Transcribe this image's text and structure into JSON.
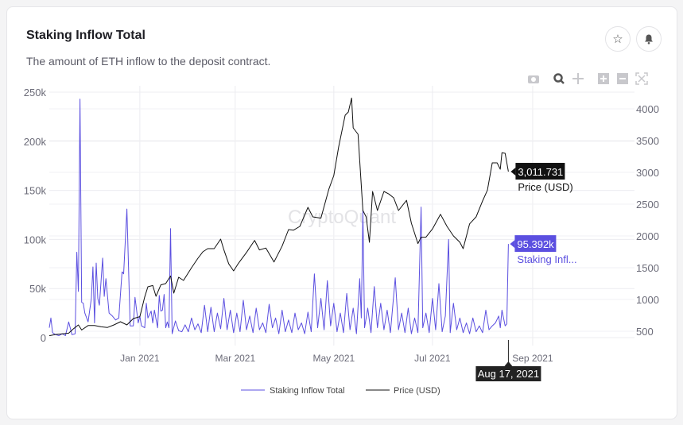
{
  "card": {
    "title": "Staking Inflow Total",
    "subtitle": "The amount of ETH inflow to the deposit contract.",
    "favorite_icon": "star-icon",
    "alert_icon": "bell-icon"
  },
  "toolbar": [
    "camera-icon",
    "zoom-icon",
    "pan-icon",
    "zoom-in-icon",
    "zoom-out-icon",
    "autoscale-icon"
  ],
  "watermark": "CryptoQuant",
  "colors": {
    "staking": "#5b4fe0",
    "price": "#111111",
    "grid": "#ececf0",
    "axis_text": "#6b6b78"
  },
  "hover": {
    "date": "Aug 17, 2021",
    "price_value": "3,011.731",
    "price_name": "Price (USD)",
    "staking_value": "95.392k",
    "staking_name": "Staking Infl..."
  },
  "chart_data": {
    "type": "line",
    "x_ticks": [
      "Jan 2021",
      "Mar 2021",
      "May 2021",
      "Jul 2021",
      "Sep 2021"
    ],
    "x_tick_dates": [
      "2021-01-01",
      "2021-03-01",
      "2021-05-01",
      "2021-07-01",
      "2021-09-01"
    ],
    "xlim": [
      "2020-11-06",
      "2021-11-03"
    ],
    "y_left": {
      "ticks": [
        "0",
        "50k",
        "100k",
        "150k",
        "200k",
        "250k"
      ],
      "tick_values": [
        0,
        50000,
        100000,
        150000,
        200000,
        250000
      ],
      "range": [
        0,
        250000
      ]
    },
    "y_right": {
      "ticks": [
        "500",
        "1000",
        "1500",
        "2000",
        "2500",
        "3000",
        "3500",
        "4000"
      ],
      "tick_values": [
        500,
        1000,
        1500,
        2000,
        2500,
        3000,
        3500,
        4000
      ],
      "range": [
        400,
        4262
      ]
    },
    "grid": true,
    "legend_position": "bottom",
    "series": [
      {
        "name": "Staking Inflow Total",
        "axis": "left",
        "color": "#5b4fe0",
        "points": [
          [
            "2020-11-06",
            10000
          ],
          [
            "2020-11-07",
            20000
          ],
          [
            "2020-11-08",
            5000
          ],
          [
            "2020-11-10",
            3000
          ],
          [
            "2020-11-12",
            2000
          ],
          [
            "2020-11-14",
            4000
          ],
          [
            "2020-11-16",
            2000
          ],
          [
            "2020-11-18",
            16000
          ],
          [
            "2020-11-20",
            3000
          ],
          [
            "2020-11-22",
            4000
          ],
          [
            "2020-11-23",
            87000
          ],
          [
            "2020-11-24",
            47000
          ],
          [
            "2020-11-25",
            243000
          ],
          [
            "2020-11-26",
            36000
          ],
          [
            "2020-11-27",
            35000
          ],
          [
            "2020-11-28",
            25000
          ],
          [
            "2020-11-30",
            16000
          ],
          [
            "2020-12-02",
            40000
          ],
          [
            "2020-12-03",
            72000
          ],
          [
            "2020-12-04",
            15000
          ],
          [
            "2020-12-05",
            76000
          ],
          [
            "2020-12-06",
            40000
          ],
          [
            "2020-12-07",
            33000
          ],
          [
            "2020-12-09",
            81000
          ],
          [
            "2020-12-10",
            42000
          ],
          [
            "2020-12-11",
            60000
          ],
          [
            "2020-12-13",
            25000
          ],
          [
            "2020-12-15",
            22000
          ],
          [
            "2020-12-17",
            18000
          ],
          [
            "2020-12-19",
            20000
          ],
          [
            "2020-12-21",
            67000
          ],
          [
            "2020-12-22",
            65000
          ],
          [
            "2020-12-24",
            131000
          ],
          [
            "2020-12-26",
            12000
          ],
          [
            "2020-12-28",
            12000
          ],
          [
            "2020-12-29",
            41000
          ],
          [
            "2020-12-31",
            15000
          ],
          [
            "2021-01-01",
            22000
          ],
          [
            "2021-01-02",
            12000
          ],
          [
            "2021-01-04",
            10000
          ],
          [
            "2021-01-05",
            35000
          ],
          [
            "2021-01-06",
            20000
          ],
          [
            "2021-01-08",
            27000
          ],
          [
            "2021-01-09",
            15000
          ],
          [
            "2021-01-10",
            28000
          ],
          [
            "2021-01-12",
            10000
          ],
          [
            "2021-01-13",
            43000
          ],
          [
            "2021-01-14",
            27000
          ],
          [
            "2021-01-15",
            28000
          ],
          [
            "2021-01-16",
            44000
          ],
          [
            "2021-01-17",
            10000
          ],
          [
            "2021-01-18",
            16000
          ],
          [
            "2021-01-19",
            10000
          ],
          [
            "2021-01-20",
            111000
          ],
          [
            "2021-01-21",
            4000
          ],
          [
            "2021-01-23",
            17000
          ],
          [
            "2021-01-25",
            7000
          ],
          [
            "2021-01-27",
            6000
          ],
          [
            "2021-01-29",
            13000
          ],
          [
            "2021-01-31",
            6000
          ],
          [
            "2021-02-02",
            20000
          ],
          [
            "2021-02-04",
            8000
          ],
          [
            "2021-02-06",
            14000
          ],
          [
            "2021-02-08",
            5000
          ],
          [
            "2021-02-10",
            33000
          ],
          [
            "2021-02-12",
            6000
          ],
          [
            "2021-02-14",
            31000
          ],
          [
            "2021-02-16",
            6000
          ],
          [
            "2021-02-18",
            25000
          ],
          [
            "2021-02-20",
            9000
          ],
          [
            "2021-02-22",
            40000
          ],
          [
            "2021-02-24",
            8000
          ],
          [
            "2021-02-26",
            28000
          ],
          [
            "2021-02-28",
            5000
          ],
          [
            "2021-03-02",
            25000
          ],
          [
            "2021-03-04",
            6000
          ],
          [
            "2021-03-06",
            38000
          ],
          [
            "2021-03-08",
            8000
          ],
          [
            "2021-03-10",
            22000
          ],
          [
            "2021-03-12",
            5000
          ],
          [
            "2021-03-14",
            30000
          ],
          [
            "2021-03-16",
            8000
          ],
          [
            "2021-03-18",
            15000
          ],
          [
            "2021-03-20",
            5000
          ],
          [
            "2021-03-22",
            34000
          ],
          [
            "2021-03-24",
            10000
          ],
          [
            "2021-03-26",
            20000
          ],
          [
            "2021-03-28",
            4000
          ],
          [
            "2021-03-30",
            28000
          ],
          [
            "2021-04-01",
            6000
          ],
          [
            "2021-04-03",
            18000
          ],
          [
            "2021-04-05",
            5000
          ],
          [
            "2021-04-07",
            25000
          ],
          [
            "2021-04-09",
            8000
          ],
          [
            "2021-04-11",
            15000
          ],
          [
            "2021-04-13",
            4000
          ],
          [
            "2021-04-15",
            26000
          ],
          [
            "2021-04-17",
            6000
          ],
          [
            "2021-04-19",
            65000
          ],
          [
            "2021-04-21",
            10000
          ],
          [
            "2021-04-23",
            40000
          ],
          [
            "2021-04-25",
            8000
          ],
          [
            "2021-04-27",
            58000
          ],
          [
            "2021-04-29",
            12000
          ],
          [
            "2021-05-01",
            35000
          ],
          [
            "2021-05-03",
            6000
          ],
          [
            "2021-05-05",
            25000
          ],
          [
            "2021-05-07",
            5000
          ],
          [
            "2021-05-09",
            45000
          ],
          [
            "2021-05-11",
            8000
          ],
          [
            "2021-05-13",
            30000
          ],
          [
            "2021-05-15",
            4000
          ],
          [
            "2021-05-17",
            60000
          ],
          [
            "2021-05-18",
            20000
          ],
          [
            "2021-05-19",
            130000
          ],
          [
            "2021-05-20",
            10000
          ],
          [
            "2021-05-22",
            30000
          ],
          [
            "2021-05-24",
            5000
          ],
          [
            "2021-05-26",
            52000
          ],
          [
            "2021-05-28",
            10000
          ],
          [
            "2021-05-30",
            35000
          ],
          [
            "2021-06-01",
            8000
          ],
          [
            "2021-06-03",
            28000
          ],
          [
            "2021-06-05",
            5000
          ],
          [
            "2021-06-08",
            61000
          ],
          [
            "2021-06-10",
            8000
          ],
          [
            "2021-06-12",
            25000
          ],
          [
            "2021-06-14",
            5000
          ],
          [
            "2021-06-16",
            30000
          ],
          [
            "2021-06-18",
            4000
          ],
          [
            "2021-06-20",
            20000
          ],
          [
            "2021-06-22",
            5000
          ],
          [
            "2021-06-24",
            133000
          ],
          [
            "2021-06-25",
            10000
          ],
          [
            "2021-06-27",
            25000
          ],
          [
            "2021-06-29",
            5000
          ],
          [
            "2021-07-01",
            40000
          ],
          [
            "2021-07-03",
            8000
          ],
          [
            "2021-07-05",
            55000
          ],
          [
            "2021-07-07",
            6000
          ],
          [
            "2021-07-09",
            22000
          ],
          [
            "2021-07-11",
            100000
          ],
          [
            "2021-07-12",
            5000
          ],
          [
            "2021-07-14",
            35000
          ],
          [
            "2021-07-16",
            8000
          ],
          [
            "2021-07-18",
            20000
          ],
          [
            "2021-07-20",
            5000
          ],
          [
            "2021-07-22",
            15000
          ],
          [
            "2021-07-24",
            4000
          ],
          [
            "2021-07-26",
            20000
          ],
          [
            "2021-07-28",
            6000
          ],
          [
            "2021-07-30",
            12000
          ],
          [
            "2021-08-01",
            5000
          ],
          [
            "2021-08-03",
            28000
          ],
          [
            "2021-08-05",
            8000
          ],
          [
            "2021-08-07",
            12000
          ],
          [
            "2021-08-09",
            15000
          ],
          [
            "2021-08-11",
            22000
          ],
          [
            "2021-08-12",
            10000
          ],
          [
            "2021-08-13",
            28000
          ],
          [
            "2021-08-15",
            12000
          ],
          [
            "2021-08-16",
            14000
          ],
          [
            "2021-08-17",
            95392
          ]
        ]
      },
      {
        "name": "Price (USD)",
        "axis": "right",
        "color": "#111111",
        "points": [
          [
            "2020-11-06",
            430
          ],
          [
            "2020-11-10",
            450
          ],
          [
            "2020-11-14",
            460
          ],
          [
            "2020-11-18",
            470
          ],
          [
            "2020-11-21",
            540
          ],
          [
            "2020-11-24",
            600
          ],
          [
            "2020-11-26",
            520
          ],
          [
            "2020-11-30",
            590
          ],
          [
            "2020-12-04",
            590
          ],
          [
            "2020-12-08",
            570
          ],
          [
            "2020-12-12",
            560
          ],
          [
            "2020-12-16",
            600
          ],
          [
            "2020-12-20",
            650
          ],
          [
            "2020-12-24",
            600
          ],
          [
            "2020-12-28",
            700
          ],
          [
            "2021-01-01",
            730
          ],
          [
            "2021-01-04",
            1040
          ],
          [
            "2021-01-06",
            1200
          ],
          [
            "2021-01-09",
            1220
          ],
          [
            "2021-01-11",
            1050
          ],
          [
            "2021-01-14",
            1230
          ],
          [
            "2021-01-17",
            1250
          ],
          [
            "2021-01-20",
            1370
          ],
          [
            "2021-01-22",
            1100
          ],
          [
            "2021-01-25",
            1350
          ],
          [
            "2021-01-28",
            1300
          ],
          [
            "2021-02-02",
            1500
          ],
          [
            "2021-02-06",
            1650
          ],
          [
            "2021-02-09",
            1750
          ],
          [
            "2021-02-12",
            1800
          ],
          [
            "2021-02-16",
            1800
          ],
          [
            "2021-02-20",
            1950
          ],
          [
            "2021-02-22",
            1780
          ],
          [
            "2021-02-25",
            1560
          ],
          [
            "2021-02-28",
            1450
          ],
          [
            "2021-03-03",
            1570
          ],
          [
            "2021-03-08",
            1740
          ],
          [
            "2021-03-13",
            1930
          ],
          [
            "2021-03-16",
            1780
          ],
          [
            "2021-03-20",
            1810
          ],
          [
            "2021-03-25",
            1590
          ],
          [
            "2021-03-30",
            1840
          ],
          [
            "2021-04-03",
            2100
          ],
          [
            "2021-04-06",
            2090
          ],
          [
            "2021-04-10",
            2150
          ],
          [
            "2021-04-15",
            2450
          ],
          [
            "2021-04-18",
            2300
          ],
          [
            "2021-04-23",
            2280
          ],
          [
            "2021-04-28",
            2740
          ],
          [
            "2021-05-01",
            2950
          ],
          [
            "2021-05-04",
            3400
          ],
          [
            "2021-05-08",
            3900
          ],
          [
            "2021-05-10",
            3950
          ],
          [
            "2021-05-12",
            4170
          ],
          [
            "2021-05-13",
            3700
          ],
          [
            "2021-05-16",
            3600
          ],
          [
            "2021-05-19",
            2400
          ],
          [
            "2021-05-21",
            2300
          ],
          [
            "2021-05-23",
            1900
          ],
          [
            "2021-05-25",
            2700
          ],
          [
            "2021-05-28",
            2400
          ],
          [
            "2021-06-01",
            2700
          ],
          [
            "2021-06-04",
            2660
          ],
          [
            "2021-06-07",
            2600
          ],
          [
            "2021-06-10",
            2400
          ],
          [
            "2021-06-15",
            2560
          ],
          [
            "2021-06-18",
            2200
          ],
          [
            "2021-06-22",
            1880
          ],
          [
            "2021-06-24",
            1980
          ],
          [
            "2021-06-27",
            1980
          ],
          [
            "2021-07-01",
            2110
          ],
          [
            "2021-07-06",
            2340
          ],
          [
            "2021-07-10",
            2150
          ],
          [
            "2021-07-14",
            2000
          ],
          [
            "2021-07-18",
            1900
          ],
          [
            "2021-07-20",
            1800
          ],
          [
            "2021-07-24",
            2190
          ],
          [
            "2021-07-28",
            2300
          ],
          [
            "2021-08-01",
            2550
          ],
          [
            "2021-08-04",
            2720
          ],
          [
            "2021-08-07",
            3150
          ],
          [
            "2021-08-10",
            3150
          ],
          [
            "2021-08-12",
            3050
          ],
          [
            "2021-08-13",
            3310
          ],
          [
            "2021-08-15",
            3300
          ],
          [
            "2021-08-17",
            3011.731
          ]
        ]
      }
    ]
  }
}
